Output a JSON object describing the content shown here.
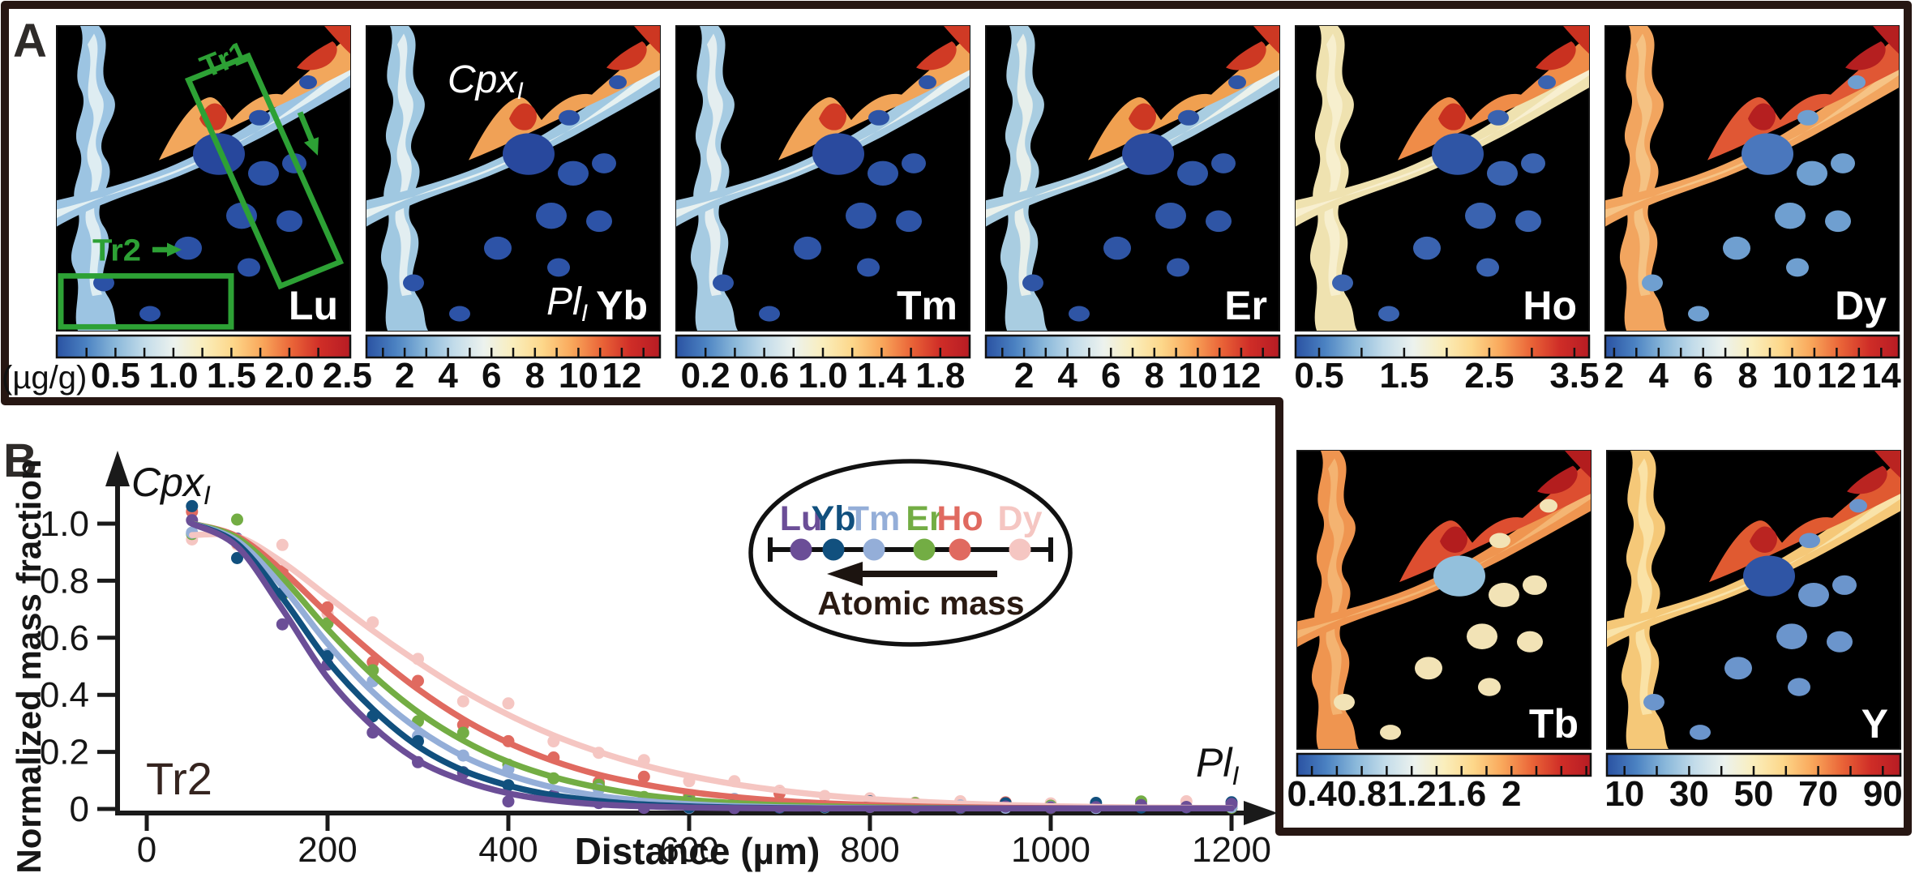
{
  "figure": {
    "background": "#ffffff",
    "border_color": "#271713",
    "map_background": "#000000"
  },
  "panelA": {
    "label": "A",
    "units": "(µg/g)",
    "annotations": {
      "tr1": "Tr1",
      "tr2": "Tr2",
      "color": "#2da135"
    },
    "phase_labels": {
      "cpx_main": "Cpx",
      "cpx_sub": "I",
      "pl_main": "Pl",
      "pl_sub": "I"
    },
    "colorbar_gradient": [
      "#2a52a2",
      "#4b82c2",
      "#8ab8da",
      "#c3dcea",
      "#ecf2ee",
      "#faeebc",
      "#fdd78a",
      "#f9a75b",
      "#ea6538",
      "#cf2d27",
      "#b71c24"
    ],
    "maps": [
      {
        "element": "Lu",
        "colorbar_ticks": [
          "0.5",
          "1.0",
          "1.5",
          "2.0",
          "2.5"
        ],
        "tick_span": [
          0.2,
          0.99
        ],
        "show_annotations": true,
        "show_phase_labels": false,
        "palette": {
          "band": "#9cc4e2",
          "core": "#eaf4f4",
          "ridge": "#f2a75c",
          "hot": "#cf3a24",
          "blob": "#2b51a5",
          "blob_big": "#27479c"
        }
      },
      {
        "element": "Yb",
        "colorbar_ticks": [
          "2",
          "4",
          "6",
          "8",
          "10",
          "12"
        ],
        "tick_span": [
          0.13,
          0.87
        ],
        "show_annotations": false,
        "show_phase_labels": true,
        "palette": {
          "band": "#a0c8e1",
          "core": "#edf5f3",
          "ridge": "#f0a156",
          "hot": "#cd3722",
          "blob": "#2d53a7",
          "blob_big": "#28489d"
        }
      },
      {
        "element": "Tm",
        "colorbar_ticks": [
          "0.2",
          "0.6",
          "1.0",
          "1.4",
          "1.8"
        ],
        "tick_span": [
          0.1,
          0.9
        ],
        "show_annotations": false,
        "show_phase_labels": false,
        "palette": {
          "band": "#a6cbe2",
          "core": "#eff5f2",
          "ridge": "#f1a458",
          "hot": "#d03a25",
          "blob": "#2e54a6",
          "blob_big": "#2a4a9e"
        }
      },
      {
        "element": "Er",
        "colorbar_ticks": [
          "2",
          "4",
          "6",
          "8",
          "10",
          "12"
        ],
        "tick_span": [
          0.13,
          0.87
        ],
        "show_annotations": false,
        "show_phase_labels": false,
        "palette": {
          "band": "#a9cde1",
          "core": "#f2f5ec",
          "ridge": "#f0a050",
          "hot": "#cd3823",
          "blob": "#2f55a5",
          "blob_big": "#2b4b9e"
        }
      },
      {
        "element": "Ho",
        "colorbar_ticks": [
          "0.5",
          "1.5",
          "2.5",
          "3.5"
        ],
        "tick_span": [
          0.08,
          0.95
        ],
        "show_annotations": false,
        "show_phase_labels": false,
        "palette": {
          "band": "#efe2b0",
          "core": "#f8f1d4",
          "ridge": "#ef8c48",
          "hot": "#c93120",
          "blob": "#3a63b0",
          "blob_big": "#2f55a5"
        }
      },
      {
        "element": "Dy",
        "colorbar_ticks": [
          "2",
          "4",
          "6",
          "8",
          "10",
          "12",
          "14"
        ],
        "tick_span": [
          0.03,
          0.94
        ],
        "show_annotations": false,
        "show_phase_labels": false,
        "palette": {
          "band": "#f2a55f",
          "core": "#f6c78a",
          "ridge": "#e05734",
          "hot": "#b51f20",
          "blob": "#6f9fd0",
          "blob_big": "#4a77bd"
        }
      }
    ],
    "inset_maps": [
      {
        "element": "Tb",
        "colorbar_ticks": [
          "0.4",
          "0.8",
          "1.2",
          "1.6",
          "2"
        ],
        "tick_span": [
          0.05,
          0.73
        ],
        "show_annotations": false,
        "show_phase_labels": false,
        "palette": {
          "band": "#ef9550",
          "core": "#f4b877",
          "ridge": "#dd4e30",
          "hot": "#b31d1e",
          "blob": "#f2e3b6",
          "blob_big": "#93c0dc"
        }
      },
      {
        "element": "Y",
        "colorbar_ticks": [
          "10",
          "30",
          "50",
          "70",
          "90"
        ],
        "tick_span": [
          0.06,
          0.94
        ],
        "show_annotations": false,
        "show_phase_labels": false,
        "palette": {
          "band": "#f5c878",
          "core": "#fae6ae",
          "ridge": "#e05a31",
          "hot": "#ba2421",
          "blob": "#6b95cc",
          "blob_big": "#2f55a5"
        }
      }
    ]
  },
  "panelB": {
    "label": "B",
    "traverse_label": "Tr2",
    "axis_color": "#1a1a1a",
    "text_color": "#35241f",
    "start_phase": {
      "main": "Cpx",
      "sub": "I"
    },
    "end_phase": {
      "main": "Pl",
      "sub": "I"
    },
    "legend": {
      "arrow_label": "Atomic mass",
      "elements": [
        {
          "symbol": "Lu",
          "color": "#6b4e97"
        },
        {
          "symbol": "Yb",
          "color": "#11507e"
        },
        {
          "symbol": "Tm",
          "color": "#94aed8"
        },
        {
          "symbol": "Er",
          "color": "#73ad44"
        },
        {
          "symbol": "Ho",
          "color": "#e06a60"
        },
        {
          "symbol": "Dy",
          "color": "#f5c6c2"
        }
      ]
    }
  },
  "chart_data": {
    "type": "line+scatter",
    "title": "",
    "xlabel": "Distance (µm)",
    "ylabel": "Normalized mass fraction",
    "xlim": [
      0,
      1260
    ],
    "ylim": [
      0,
      1.05
    ],
    "xticks": [
      0,
      200,
      400,
      600,
      800,
      1000,
      1200
    ],
    "yticks": [
      0,
      0.2,
      0.4,
      0.6,
      0.8,
      1
    ],
    "ytick_labels": [
      "0",
      "0.2",
      "0.4",
      "0.6",
      "0.8",
      "1.0"
    ],
    "grid": false,
    "legend_position": "center-right ellipse",
    "annotations": [
      "Tr2",
      "Cpx_I at profile start",
      "Pl_I at profile end",
      "arrow: atomic mass decreases toward Lu"
    ],
    "x": [
      50,
      100,
      150,
      200,
      250,
      300,
      350,
      400,
      450,
      500,
      550,
      600,
      650,
      700,
      750,
      800,
      850,
      900,
      950,
      1000,
      1050,
      1100,
      1150,
      1200
    ],
    "series": [
      {
        "name": "Lu",
        "color": "#6b4e97",
        "values": [
          1.0,
          0.92,
          0.7,
          0.46,
          0.29,
          0.17,
          0.1,
          0.055,
          0.03,
          0.016,
          0.009,
          0.005,
          0.003,
          0.002,
          0.002,
          0.002,
          0.002,
          0.002,
          0.002,
          0.002,
          0.002,
          0.002,
          0.002,
          0.002
        ]
      },
      {
        "name": "Yb",
        "color": "#11507e",
        "values": [
          1.0,
          0.93,
          0.74,
          0.52,
          0.35,
          0.22,
          0.135,
          0.082,
          0.048,
          0.028,
          0.016,
          0.009,
          0.005,
          0.003,
          0.002,
          0.002,
          0.002,
          0.002,
          0.002,
          0.002,
          0.002,
          0.002,
          0.002,
          0.002
        ]
      },
      {
        "name": "Tm",
        "color": "#94aed8",
        "values": [
          1.0,
          0.94,
          0.78,
          0.58,
          0.41,
          0.28,
          0.185,
          0.12,
          0.075,
          0.046,
          0.028,
          0.017,
          0.01,
          0.006,
          0.004,
          0.003,
          0.002,
          0.002,
          0.002,
          0.002,
          0.002,
          0.002,
          0.002,
          0.002
        ]
      },
      {
        "name": "Er",
        "color": "#73ad44",
        "values": [
          1.0,
          0.95,
          0.81,
          0.63,
          0.47,
          0.34,
          0.24,
          0.165,
          0.112,
          0.075,
          0.049,
          0.032,
          0.021,
          0.013,
          0.009,
          0.006,
          0.004,
          0.003,
          0.002,
          0.002,
          0.002,
          0.002,
          0.002,
          0.002
        ]
      },
      {
        "name": "Ho",
        "color": "#e06a60",
        "values": [
          1.0,
          0.955,
          0.835,
          0.685,
          0.545,
          0.42,
          0.315,
          0.232,
          0.168,
          0.12,
          0.086,
          0.06,
          0.042,
          0.029,
          0.02,
          0.014,
          0.009,
          0.006,
          0.004,
          0.003,
          0.002,
          0.002,
          0.002,
          0.002
        ]
      },
      {
        "name": "Dy",
        "color": "#f5c6c2",
        "values": [
          0.96,
          0.955,
          0.865,
          0.745,
          0.625,
          0.515,
          0.415,
          0.33,
          0.258,
          0.2,
          0.153,
          0.116,
          0.087,
          0.065,
          0.048,
          0.035,
          0.026,
          0.019,
          0.014,
          0.01,
          0.007,
          0.005,
          0.004,
          0.003
        ]
      }
    ]
  }
}
